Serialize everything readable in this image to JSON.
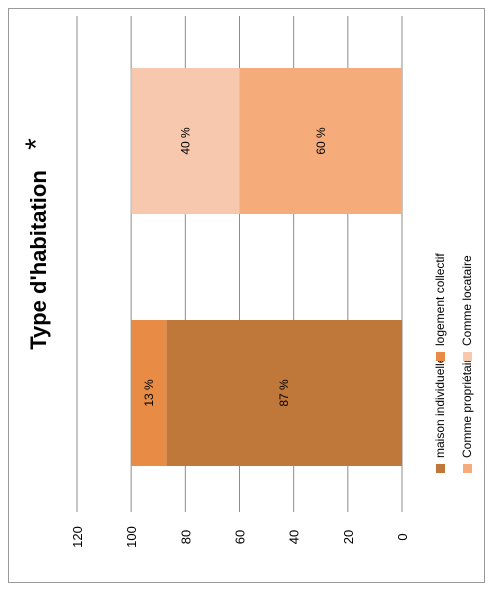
{
  "chart_data": {
    "type": "bar",
    "stacked": true,
    "orientation": "vertical (page rotated 90° counter-clockwise)",
    "title": "Type d'habitation",
    "title_mark": "*",
    "ylim": [
      0,
      120
    ],
    "yticks": [
      0,
      20,
      40,
      60,
      80,
      100,
      120
    ],
    "grid": true,
    "legend_position": "right of plot (bottom when rotated)",
    "groups": [
      {
        "segments": [
          {
            "name": "maison individuelle",
            "value": 87,
            "label": "87 %",
            "color": "#C0773A"
          },
          {
            "name": "logement collectif",
            "value": 13,
            "label": "13 %",
            "color": "#E88C45"
          }
        ]
      },
      {
        "segments": [
          {
            "name": "Comme propriétaire",
            "value": 60,
            "label": "60 %",
            "color": "#F5AC7A"
          },
          {
            "name": "Comme locataire",
            "value": 40,
            "label": "40 %",
            "color": "#F7C8AE"
          }
        ]
      }
    ],
    "legend": [
      {
        "name": "maison individuelle",
        "color": "#C0773A"
      },
      {
        "name": "logement collectif",
        "color": "#E88C45"
      },
      {
        "name": "Comme propriétaire",
        "color": "#F5AC7A"
      },
      {
        "name": "Comme locataire",
        "color": "#F7C8AE"
      }
    ]
  }
}
